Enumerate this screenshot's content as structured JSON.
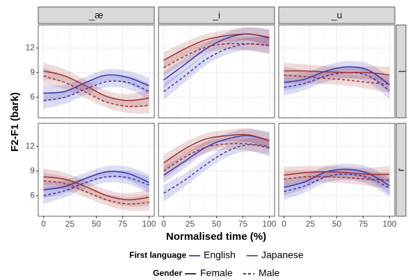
{
  "chart_data": {
    "type": "line",
    "x_label": "Normalised time (%)",
    "y_label": "F2-F1 (bark)",
    "x": [
      0,
      20,
      40,
      60,
      80,
      100
    ],
    "xlim": [
      -5,
      105
    ],
    "xticks": [
      0,
      25,
      50,
      75,
      100
    ],
    "ylim": [
      3.5,
      14.8
    ],
    "yticks": [
      6,
      9,
      12
    ],
    "grid": true,
    "columns": [
      "_æ",
      "_i",
      "_u"
    ],
    "rows": [
      "l",
      "ɹ"
    ],
    "legends": [
      {
        "title": "First language",
        "entries": [
          {
            "label": "English",
            "color": "#3b3bb5"
          },
          {
            "label": "Japanese",
            "color": "#a33535"
          }
        ]
      },
      {
        "title": "Gender",
        "entries": [
          {
            "label": "Female",
            "dash": "solid"
          },
          {
            "label": "Male",
            "dash": "dashed"
          }
        ]
      }
    ],
    "panels": [
      {
        "series": [
          {
            "language": "English",
            "gender": "Female",
            "values": [
              6.5,
              6.7,
              7.8,
              8.7,
              8.4,
              7.4
            ],
            "lower": [
              5.5,
              5.9,
              7.1,
              8.0,
              7.6,
              6.4
            ],
            "upper": [
              7.5,
              7.5,
              8.5,
              9.4,
              9.2,
              8.4
            ]
          },
          {
            "language": "English",
            "gender": "Male",
            "values": [
              5.6,
              6.0,
              7.0,
              7.9,
              7.8,
              6.7
            ],
            "lower": [
              4.6,
              5.2,
              6.3,
              7.2,
              7.0,
              5.7
            ],
            "upper": [
              6.6,
              6.8,
              7.7,
              8.6,
              8.6,
              7.7
            ]
          },
          {
            "language": "Japanese",
            "gender": "Female",
            "values": [
              9.2,
              8.6,
              7.4,
              6.1,
              5.6,
              5.9
            ],
            "lower": [
              8.2,
              7.8,
              6.7,
              5.4,
              4.8,
              4.9
            ],
            "upper": [
              10.2,
              9.4,
              8.1,
              6.8,
              6.4,
              6.9
            ]
          },
          {
            "language": "Japanese",
            "gender": "Male",
            "values": [
              8.6,
              7.8,
              6.6,
              5.4,
              4.9,
              5.0
            ],
            "lower": [
              7.6,
              7.0,
              5.9,
              4.7,
              4.1,
              4.0
            ],
            "upper": [
              9.6,
              8.6,
              7.3,
              6.1,
              5.7,
              6.0
            ]
          }
        ]
      },
      {
        "series": [
          {
            "language": "English",
            "gender": "Female",
            "values": [
              8.1,
              10.0,
              11.9,
              13.2,
              13.7,
              13.2
            ],
            "lower": [
              7.1,
              9.2,
              11.2,
              12.5,
              12.9,
              12.2
            ],
            "upper": [
              9.1,
              10.8,
              12.6,
              13.9,
              14.5,
              14.2
            ]
          },
          {
            "language": "English",
            "gender": "Male",
            "values": [
              6.7,
              8.6,
              10.6,
              11.9,
              12.5,
              12.3
            ],
            "lower": [
              5.7,
              7.8,
              9.9,
              11.2,
              11.7,
              11.3
            ],
            "upper": [
              7.7,
              9.4,
              11.3,
              12.6,
              13.3,
              13.3
            ]
          },
          {
            "language": "Japanese",
            "gender": "Female",
            "values": [
              10.5,
              11.9,
              13.0,
              13.5,
              13.7,
              13.3
            ],
            "lower": [
              9.5,
              11.1,
              12.3,
              12.8,
              12.9,
              12.3
            ],
            "upper": [
              11.5,
              12.7,
              13.7,
              14.2,
              14.5,
              14.3
            ]
          },
          {
            "language": "Japanese",
            "gender": "Male",
            "values": [
              9.6,
              11.0,
              12.1,
              12.5,
              12.5,
              12.3
            ],
            "lower": [
              8.6,
              10.2,
              11.4,
              11.8,
              11.7,
              11.3
            ],
            "upper": [
              10.6,
              11.8,
              12.8,
              13.2,
              13.3,
              13.3
            ]
          }
        ]
      },
      {
        "series": [
          {
            "language": "English",
            "gender": "Female",
            "values": [
              7.8,
              8.2,
              9.2,
              9.7,
              9.3,
              7.5
            ],
            "lower": [
              6.8,
              7.4,
              8.5,
              9.0,
              8.5,
              6.5
            ],
            "upper": [
              8.8,
              9.0,
              9.9,
              10.4,
              10.1,
              8.5
            ]
          },
          {
            "language": "English",
            "gender": "Male",
            "values": [
              7.2,
              7.7,
              8.6,
              9.0,
              8.6,
              6.8
            ],
            "lower": [
              6.2,
              6.9,
              7.9,
              8.3,
              7.8,
              5.8
            ],
            "upper": [
              8.2,
              8.5,
              9.3,
              9.7,
              9.4,
              7.8
            ]
          },
          {
            "language": "Japanese",
            "gender": "Female",
            "values": [
              9.2,
              9.2,
              9.1,
              9.0,
              9.0,
              8.7
            ],
            "lower": [
              8.2,
              8.4,
              8.4,
              8.3,
              8.2,
              7.7
            ],
            "upper": [
              10.2,
              10.0,
              9.8,
              9.7,
              9.8,
              9.7
            ]
          },
          {
            "language": "Japanese",
            "gender": "Male",
            "values": [
              8.7,
              8.5,
              8.3,
              8.1,
              7.8,
              7.6
            ],
            "lower": [
              7.7,
              7.7,
              7.6,
              7.4,
              7.0,
              6.6
            ],
            "upper": [
              9.7,
              9.3,
              9.0,
              8.8,
              8.6,
              8.6
            ]
          }
        ]
      },
      {
        "series": [
          {
            "language": "English",
            "gender": "Female",
            "values": [
              6.7,
              7.1,
              8.1,
              8.9,
              8.7,
              7.6
            ],
            "lower": [
              5.7,
              6.3,
              7.4,
              8.2,
              7.9,
              6.6
            ],
            "upper": [
              7.7,
              7.9,
              8.8,
              9.6,
              9.5,
              8.6
            ]
          },
          {
            "language": "English",
            "gender": "Male",
            "values": [
              6.0,
              6.6,
              7.6,
              8.3,
              8.2,
              7.3
            ],
            "lower": [
              5.0,
              5.8,
              6.9,
              7.6,
              7.4,
              6.3
            ],
            "upper": [
              7.0,
              7.4,
              8.3,
              9.0,
              9.0,
              8.3
            ]
          },
          {
            "language": "Japanese",
            "gender": "Female",
            "values": [
              8.3,
              8.0,
              7.1,
              6.0,
              5.5,
              5.8
            ],
            "lower": [
              7.3,
              7.2,
              6.4,
              5.3,
              4.7,
              4.8
            ],
            "upper": [
              9.3,
              8.8,
              7.8,
              6.7,
              6.3,
              6.8
            ]
          },
          {
            "language": "Japanese",
            "gender": "Male",
            "values": [
              7.8,
              7.5,
              6.5,
              5.5,
              5.0,
              5.2
            ],
            "lower": [
              6.8,
              6.7,
              5.8,
              4.8,
              4.2,
              4.2
            ],
            "upper": [
              8.8,
              8.3,
              7.2,
              6.2,
              5.8,
              6.2
            ]
          }
        ]
      },
      {
        "series": [
          {
            "language": "English",
            "gender": "Female",
            "values": [
              8.5,
              10.2,
              11.9,
              12.9,
              13.3,
              12.7
            ],
            "lower": [
              7.5,
              9.4,
              11.2,
              12.2,
              12.5,
              11.7
            ],
            "upper": [
              9.5,
              11.0,
              12.6,
              13.6,
              14.1,
              13.7
            ]
          },
          {
            "language": "English",
            "gender": "Male",
            "values": [
              6.3,
              7.9,
              9.8,
              11.4,
              12.2,
              11.8
            ],
            "lower": [
              5.3,
              7.1,
              9.1,
              10.7,
              11.4,
              10.8
            ],
            "upper": [
              7.3,
              8.7,
              10.5,
              12.1,
              13.0,
              12.8
            ]
          },
          {
            "language": "Japanese",
            "gender": "Female",
            "values": [
              10.0,
              11.7,
              12.9,
              13.3,
              13.4,
              12.7
            ],
            "lower": [
              9.0,
              10.9,
              12.2,
              12.6,
              12.6,
              11.7
            ],
            "upper": [
              11.0,
              12.5,
              13.6,
              14.0,
              14.2,
              13.7
            ]
          },
          {
            "language": "Japanese",
            "gender": "Male",
            "values": [
              9.0,
              10.7,
              11.9,
              12.3,
              12.3,
              12.0
            ],
            "lower": [
              8.0,
              9.9,
              11.2,
              11.6,
              11.5,
              11.0
            ],
            "upper": [
              10.0,
              11.5,
              12.6,
              13.0,
              13.1,
              13.0
            ]
          }
        ]
      },
      {
        "series": [
          {
            "language": "English",
            "gender": "Female",
            "values": [
              7.0,
              7.7,
              8.9,
              9.2,
              8.7,
              7.2
            ],
            "lower": [
              6.0,
              6.9,
              8.2,
              8.5,
              7.9,
              6.2
            ],
            "upper": [
              8.0,
              8.5,
              9.6,
              9.9,
              9.5,
              8.2
            ]
          },
          {
            "language": "English",
            "gender": "Male",
            "values": [
              6.5,
              7.2,
              8.3,
              8.6,
              8.2,
              6.9
            ],
            "lower": [
              5.5,
              6.4,
              7.6,
              7.9,
              7.4,
              5.9
            ],
            "upper": [
              7.5,
              8.0,
              9.0,
              9.3,
              9.0,
              7.9
            ]
          },
          {
            "language": "Japanese",
            "gender": "Female",
            "values": [
              8.5,
              8.8,
              8.9,
              8.8,
              8.6,
              8.6
            ],
            "lower": [
              7.5,
              8.0,
              8.2,
              8.1,
              7.8,
              7.6
            ],
            "upper": [
              9.5,
              9.6,
              9.6,
              9.5,
              9.4,
              9.6
            ]
          },
          {
            "language": "Japanese",
            "gender": "Male",
            "values": [
              8.0,
              8.3,
              8.3,
              8.2,
              8.0,
              7.9
            ],
            "lower": [
              7.0,
              7.5,
              7.6,
              7.5,
              7.2,
              6.9
            ],
            "upper": [
              9.0,
              9.1,
              9.0,
              8.9,
              8.8,
              8.9
            ]
          }
        ]
      }
    ]
  }
}
